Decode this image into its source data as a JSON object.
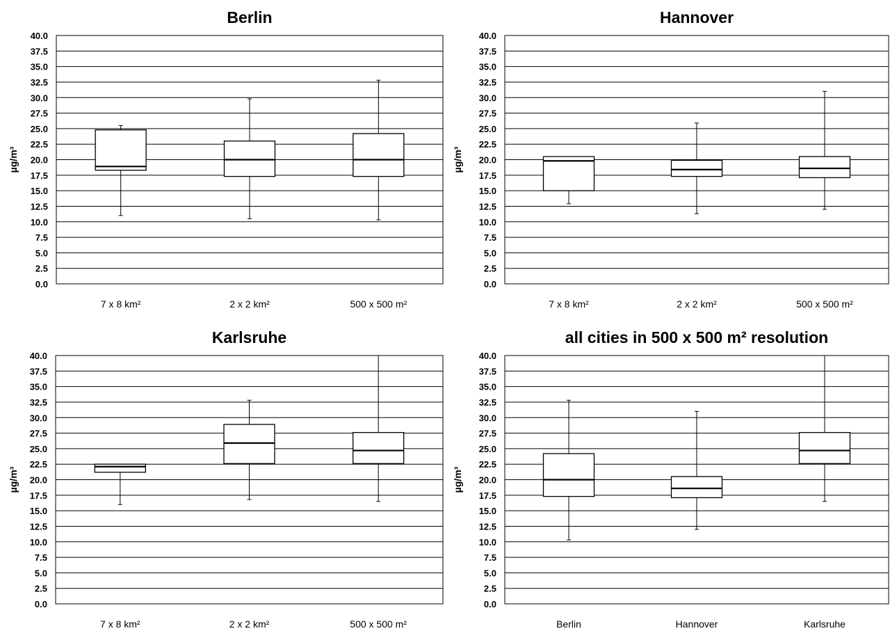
{
  "chart_data": [
    {
      "type": "box",
      "title": "Berlin",
      "ylabel": "µg/m³",
      "ylim": [
        0,
        40
      ],
      "yticks": [
        "0.0",
        "2.5",
        "5.0",
        "7.5",
        "10.0",
        "12.5",
        "15.0",
        "17.5",
        "20.0",
        "22.5",
        "25.0",
        "27.5",
        "30.0",
        "32.5",
        "35.0",
        "37.5",
        "40.0"
      ],
      "grid": true,
      "categories": [
        "7 x 8 km²",
        "2 x 2 km²",
        "500 x 500 m²"
      ],
      "boxes": [
        {
          "min": 11.0,
          "q1": 18.3,
          "median": 18.9,
          "q3": 24.8,
          "max": 25.5
        },
        {
          "min": 10.5,
          "q1": 17.3,
          "median": 20.0,
          "q3": 23.0,
          "max": 29.8
        },
        {
          "min": 10.3,
          "q1": 17.3,
          "median": 20.0,
          "q3": 24.2,
          "max": 32.8
        }
      ]
    },
    {
      "type": "box",
      "title": "Hannover",
      "ylabel": "µg/m³",
      "ylim": [
        0,
        40
      ],
      "yticks": [
        "0.0",
        "2.5",
        "5.0",
        "7.5",
        "10.0",
        "12.5",
        "15.0",
        "17.5",
        "20.0",
        "22.5",
        "25.0",
        "27.5",
        "30.0",
        "32.5",
        "35.0",
        "37.5",
        "40.0"
      ],
      "grid": true,
      "categories": [
        "7 x 8 km²",
        "2 x 2 km²",
        "500 x 500 m²"
      ],
      "boxes": [
        {
          "min": 12.9,
          "q1": 15.0,
          "median": 19.8,
          "q3": 20.5,
          "max": 20.5
        },
        {
          "min": 11.3,
          "q1": 17.3,
          "median": 18.4,
          "q3": 19.9,
          "max": 25.9
        },
        {
          "min": 12.0,
          "q1": 17.1,
          "median": 18.6,
          "q3": 20.5,
          "max": 31.0
        }
      ]
    },
    {
      "type": "box",
      "title": "Karlsruhe",
      "ylabel": "µg/m³",
      "ylim": [
        0,
        40
      ],
      "yticks": [
        "0.0",
        "2.5",
        "5.0",
        "7.5",
        "10.0",
        "12.5",
        "15.0",
        "17.5",
        "20.0",
        "22.5",
        "25.0",
        "27.5",
        "30.0",
        "32.5",
        "35.0",
        "37.5",
        "40.0"
      ],
      "grid": true,
      "categories": [
        "7 x 8 km²",
        "2 x 2 km²",
        "500 x 500 m²"
      ],
      "boxes": [
        {
          "min": 16.0,
          "q1": 21.2,
          "median": 22.1,
          "q3": 22.5,
          "max": 22.5
        },
        {
          "min": 16.8,
          "q1": 22.6,
          "median": 25.9,
          "q3": 28.9,
          "max": 32.8
        },
        {
          "min": 16.5,
          "q1": 22.6,
          "median": 24.7,
          "q3": 27.6,
          "max": 40.0
        }
      ]
    },
    {
      "type": "box",
      "title": "all cities in 500 x 500 m² resolution",
      "ylabel": "µg/m³",
      "ylim": [
        0,
        40
      ],
      "yticks": [
        "0.0",
        "2.5",
        "5.0",
        "7.5",
        "10.0",
        "12.5",
        "15.0",
        "17.5",
        "20.0",
        "22.5",
        "25.0",
        "27.5",
        "30.0",
        "32.5",
        "35.0",
        "37.5",
        "40.0"
      ],
      "grid": true,
      "categories": [
        "Berlin",
        "Hannover",
        "Karlsruhe"
      ],
      "boxes": [
        {
          "min": 10.3,
          "q1": 17.3,
          "median": 20.0,
          "q3": 24.2,
          "max": 32.8
        },
        {
          "min": 12.0,
          "q1": 17.1,
          "median": 18.6,
          "q3": 20.5,
          "max": 31.0
        },
        {
          "min": 16.5,
          "q1": 22.6,
          "median": 24.7,
          "q3": 27.6,
          "max": 40.0
        }
      ]
    }
  ]
}
